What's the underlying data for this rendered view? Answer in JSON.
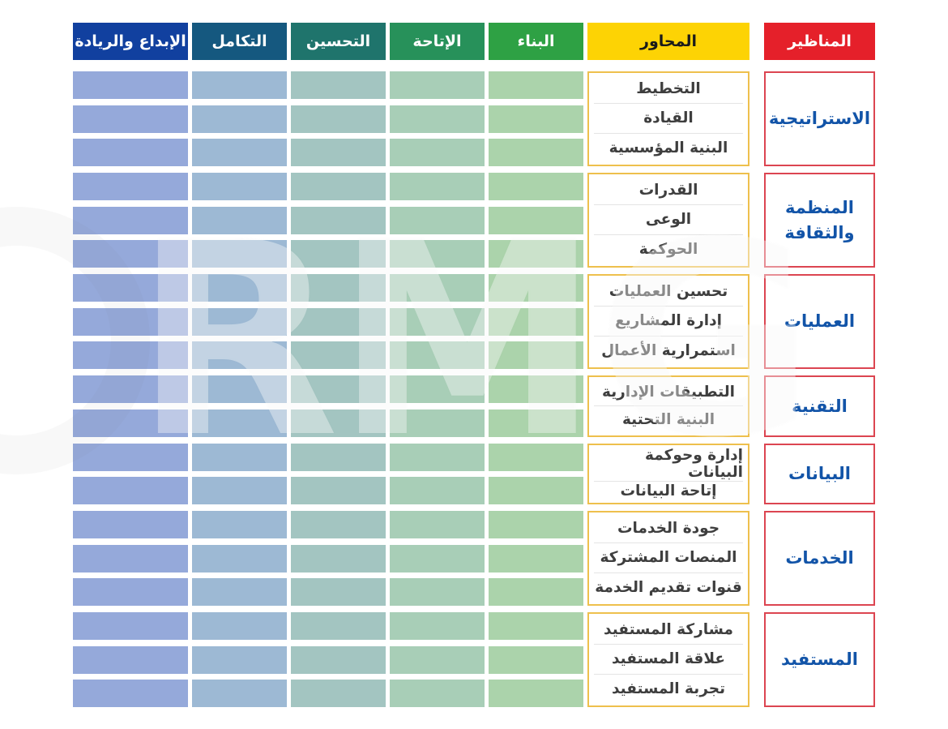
{
  "watermark": "RMG",
  "headers": {
    "perspectives": "المناظير",
    "axes": "المحاور"
  },
  "columns": [
    {
      "label": "البناء",
      "header_color": "#2ea144",
      "cell_color": "#abd3ab"
    },
    {
      "label": "الإتاحة",
      "header_color": "#27915a",
      "cell_color": "#a8ceb7"
    },
    {
      "label": "التحسين",
      "header_color": "#1f746c",
      "cell_color": "#a3c5c1"
    },
    {
      "label": "التكامل",
      "header_color": "#15587f",
      "cell_color": "#9db9d4"
    },
    {
      "label": "الإبداع والريادة",
      "header_color": "#11409f",
      "cell_color": "#95a9da"
    }
  ],
  "groups": [
    {
      "perspective": "الاستراتيجية",
      "axes": [
        "التخطيط",
        "القيادة",
        "البنية المؤسسية"
      ]
    },
    {
      "perspective": "المنظمة والثقافة",
      "axes": [
        "القدرات",
        "الوعى",
        "الحوكمة"
      ]
    },
    {
      "perspective": "العمليات",
      "axes": [
        "تحسين العمليات",
        "إدارة المشاريع",
        "استمرارية الأعمال"
      ]
    },
    {
      "perspective": "التقنية",
      "axes": [
        "التطبيقات الإدارية",
        "البنية التحتية"
      ]
    },
    {
      "perspective": "البيانات",
      "axes": [
        "إدارة وحوكمة البيانات",
        "إتاحة البيانات"
      ]
    },
    {
      "perspective": "الخدمات",
      "axes": [
        "جودة الخدمات",
        "المنصات المشتركة",
        "قنوات تقديم الخدمة"
      ]
    },
    {
      "perspective": "المستفيد",
      "axes": [
        "مشاركة المستفيد",
        "علاقة المستفيد",
        "تجربة المستفيد"
      ]
    }
  ],
  "colors": {
    "perspectives_header_bg": "#e5202a",
    "perspectives_header_text": "#ffffff",
    "axes_header_bg": "#fdd304",
    "axes_header_text": "#1a1a1a",
    "perspective_box_border": "#dc4551",
    "perspective_box_text": "#1254a8",
    "axes_box_border": "#eec04d",
    "axes_row_text": "#3e3e3e",
    "axes_row_separator": "#e4e4e4",
    "background": "#ffffff"
  }
}
